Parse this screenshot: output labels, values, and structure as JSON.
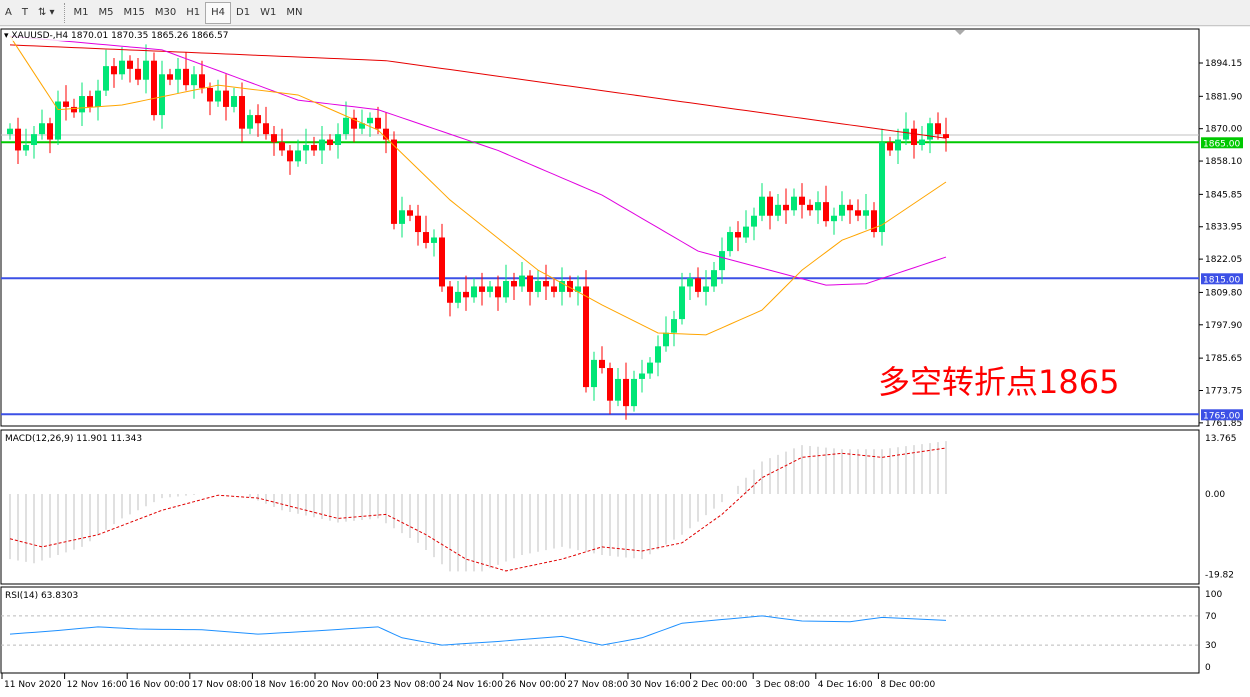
{
  "toolbar": {
    "tools": [
      "A",
      "T",
      "⇅"
    ],
    "timeframes": [
      "M1",
      "M5",
      "M15",
      "M30",
      "H1",
      "H4",
      "D1",
      "W1",
      "MN"
    ],
    "active": "H4"
  },
  "main": {
    "title": "XAUUSD-,H4  1870.01 1870.35 1865.26 1866.57",
    "annotation": "多空转折点1865",
    "price_labels": [
      "1894.15",
      "1881.90",
      "1870.00",
      "1858.10",
      "1845.85",
      "1833.95",
      "1822.05",
      "1809.80",
      "1797.90",
      "1785.65",
      "1773.75",
      "1761.85"
    ],
    "hlines": [
      {
        "price": 1865.0,
        "label": "1865.00",
        "color": "#00c800"
      },
      {
        "price": 1815.0,
        "label": "1815.00",
        "color": "#3c50e6"
      },
      {
        "price": 1765.0,
        "label": "1765.00",
        "color": "#3c50e6"
      }
    ]
  },
  "macd": {
    "title": "MACD(12,26,9) 11.901 11.343",
    "labels": [
      "13.765",
      "0.00",
      "-19.82"
    ]
  },
  "rsi": {
    "title": "RSI(14) 63.8303",
    "labels": [
      "100",
      "70",
      "30",
      "0"
    ]
  },
  "xaxis": [
    "11 Nov 2020",
    "12 Nov 16:00",
    "16 Nov 00:00",
    "17 Nov 08:00",
    "18 Nov 16:00",
    "20 Nov 00:00",
    "23 Nov 08:00",
    "24 Nov 16:00",
    "26 Nov 00:00",
    "27 Nov 08:00",
    "30 Nov 16:00",
    "2 Dec 00:00",
    "3 Dec 08:00",
    "4 Dec 16:00",
    "8 Dec 00:00"
  ],
  "chart_data": {
    "type": "candlestick",
    "symbol": "XAUUSD-",
    "timeframe": "H4",
    "colors": {
      "up": "#00e676",
      "down": "#ff0000"
    },
    "closes": [
      1870,
      1862,
      1864,
      1868,
      1872,
      1866,
      1880,
      1878,
      1876,
      1882,
      1878,
      1884,
      1893,
      1890,
      1895,
      1892,
      1888,
      1895,
      1875,
      1890,
      1888,
      1892,
      1886,
      1890,
      1885,
      1880,
      1884,
      1878,
      1882,
      1870,
      1875,
      1872,
      1868,
      1865,
      1862,
      1858,
      1862,
      1864,
      1862,
      1866,
      1864,
      1868,
      1874,
      1870,
      1872,
      1874,
      1870,
      1866,
      1835,
      1840,
      1838,
      1832,
      1828,
      1830,
      1812,
      1806,
      1810,
      1808,
      1812,
      1810,
      1812,
      1808,
      1814,
      1812,
      1816,
      1810,
      1814,
      1812,
      1810,
      1814,
      1810,
      1812,
      1775,
      1785,
      1782,
      1770,
      1778,
      1768,
      1778,
      1780,
      1784,
      1790,
      1795,
      1800,
      1812,
      1815,
      1810,
      1812,
      1818,
      1825,
      1832,
      1830,
      1834,
      1838,
      1845,
      1838,
      1842,
      1840,
      1845,
      1842,
      1840,
      1843,
      1836,
      1838,
      1842,
      1840,
      1838,
      1840,
      1832,
      1865,
      1862,
      1866,
      1870,
      1864,
      1866,
      1872,
      1868,
      1866.57
    ],
    "ma_red": [
      [
        0,
        1900.8
      ],
      [
        47,
        1895
      ],
      [
        87,
        1878.7
      ],
      [
        117,
        1866.5
      ]
    ],
    "ma_magenta": [
      [
        0,
        1904
      ],
      [
        19,
        1899
      ],
      [
        36,
        1880.5
      ],
      [
        46,
        1877
      ],
      [
        61,
        1862
      ],
      [
        74,
        1845.6
      ],
      [
        86,
        1825
      ],
      [
        102,
        1812.5
      ],
      [
        107,
        1813
      ],
      [
        117,
        1822.8
      ]
    ],
    "ma_orange": [
      [
        0,
        1904
      ],
      [
        6,
        1877
      ],
      [
        14,
        1878.7
      ],
      [
        26,
        1886
      ],
      [
        36,
        1882.4
      ],
      [
        46,
        1869.5
      ],
      [
        55,
        1843.8
      ],
      [
        66,
        1818
      ],
      [
        74,
        1805.2
      ],
      [
        81,
        1794.9
      ],
      [
        87,
        1794.2
      ],
      [
        94,
        1803.3
      ],
      [
        99,
        1818
      ],
      [
        104,
        1829
      ],
      [
        109,
        1834.6
      ],
      [
        117,
        1850.4
      ]
    ],
    "macd_hist": [
      [
        0,
        -16
      ],
      [
        3,
        -17
      ],
      [
        9,
        -13
      ],
      [
        14,
        -6
      ],
      [
        19,
        -1
      ],
      [
        24,
        0
      ],
      [
        29,
        0
      ],
      [
        34,
        -4
      ],
      [
        41,
        -7
      ],
      [
        46,
        -6
      ],
      [
        51,
        -12
      ],
      [
        55,
        -19
      ],
      [
        59,
        -19
      ],
      [
        64,
        -15
      ],
      [
        69,
        -13
      ],
      [
        74,
        -15
      ],
      [
        79,
        -16
      ],
      [
        84,
        -10
      ],
      [
        89,
        -2
      ],
      [
        94,
        8
      ],
      [
        99,
        12
      ],
      [
        104,
        11
      ],
      [
        109,
        11
      ],
      [
        113,
        12
      ],
      [
        117,
        13
      ]
    ],
    "macd_signal": [
      [
        0,
        -11
      ],
      [
        4,
        -13
      ],
      [
        11,
        -10
      ],
      [
        19,
        -4
      ],
      [
        26,
        -0.3
      ],
      [
        31,
        -1
      ],
      [
        41,
        -6
      ],
      [
        47,
        -5
      ],
      [
        52,
        -10
      ],
      [
        57,
        -16
      ],
      [
        62,
        -18.9
      ],
      [
        69,
        -16
      ],
      [
        74,
        -13
      ],
      [
        79,
        -14
      ],
      [
        84,
        -12
      ],
      [
        89,
        -5
      ],
      [
        94,
        4
      ],
      [
        99,
        9
      ],
      [
        104,
        10
      ],
      [
        109,
        9
      ],
      [
        117,
        11.3
      ]
    ],
    "rsi": [
      [
        0,
        45
      ],
      [
        6,
        50
      ],
      [
        11,
        55
      ],
      [
        16,
        52
      ],
      [
        24,
        51
      ],
      [
        31,
        45
      ],
      [
        39,
        50
      ],
      [
        46,
        55
      ],
      [
        49,
        40
      ],
      [
        54,
        30
      ],
      [
        61,
        35
      ],
      [
        69,
        42
      ],
      [
        74,
        30
      ],
      [
        79,
        40
      ],
      [
        84,
        60
      ],
      [
        89,
        65
      ],
      [
        94,
        70
      ],
      [
        99,
        63
      ],
      [
        105,
        62
      ],
      [
        109,
        68
      ],
      [
        117,
        63.8
      ]
    ]
  }
}
